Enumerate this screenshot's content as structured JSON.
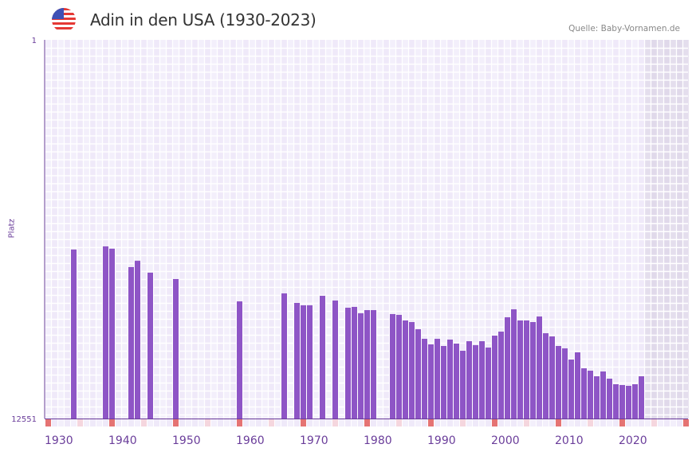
{
  "header": {
    "title": "Adin in den USA (1930-2023)",
    "source": "Quelle: Baby-Vornamen.de",
    "flag_icon": "us-flag-icon"
  },
  "chart_data": {
    "type": "bar",
    "title": "Adin in den USA (1930-2023)",
    "xlabel": "",
    "ylabel": "Platz",
    "y_scale": "log-reversed",
    "ylim": [
      1,
      12551
    ],
    "y_tick_labels": [
      "1",
      "12551"
    ],
    "xlim": [
      1930,
      2030
    ],
    "x_tick_labels": [
      "1930",
      "1940",
      "1950",
      "1960",
      "1970",
      "1980",
      "1990",
      "2000",
      "2010",
      "2020"
    ],
    "data_range": [
      1930,
      2023
    ],
    "points": [
      [
        1934,
        186
      ],
      [
        1939,
        172
      ],
      [
        1940,
        182
      ],
      [
        1943,
        288
      ],
      [
        1944,
        246
      ],
      [
        1946,
        331
      ],
      [
        1950,
        388
      ],
      [
        1960,
        677
      ],
      [
        1967,
        555
      ],
      [
        1969,
        704
      ],
      [
        1970,
        747
      ],
      [
        1971,
        747
      ],
      [
        1973,
        589
      ],
      [
        1975,
        663
      ],
      [
        1977,
        793
      ],
      [
        1978,
        777
      ],
      [
        1979,
        911
      ],
      [
        1980,
        842
      ],
      [
        1981,
        842
      ],
      [
        1984,
        929
      ],
      [
        1985,
        948
      ],
      [
        1986,
        1090
      ],
      [
        1987,
        1134
      ],
      [
        1988,
        1356
      ],
      [
        1989,
        1721
      ],
      [
        1990,
        1978
      ],
      [
        1991,
        1721
      ],
      [
        1992,
        2058
      ],
      [
        1993,
        1755
      ],
      [
        1994,
        1939
      ],
      [
        1995,
        2318
      ],
      [
        1996,
        1827
      ],
      [
        1997,
        2017
      ],
      [
        1998,
        1827
      ],
      [
        1999,
        2141
      ],
      [
        2000,
        1590
      ],
      [
        2001,
        1439
      ],
      [
        2002,
        1006
      ],
      [
        2003,
        825
      ],
      [
        2004,
        1090
      ],
      [
        2005,
        1090
      ],
      [
        2006,
        1134
      ],
      [
        2007,
        987
      ],
      [
        2008,
        1497
      ],
      [
        2009,
        1622
      ],
      [
        2010,
        2058
      ],
      [
        2011,
        2184
      ],
      [
        2012,
        2885
      ],
      [
        2013,
        2413
      ],
      [
        2014,
        3590
      ],
      [
        2015,
        3811
      ],
      [
        2016,
        4380
      ],
      [
        2017,
        3887
      ],
      [
        2018,
        4648
      ],
      [
        2019,
        5341
      ],
      [
        2020,
        5449
      ],
      [
        2021,
        5558
      ],
      [
        2022,
        5341
      ],
      [
        2023,
        4380
      ]
    ],
    "colors": {
      "bar": "#8e55c6",
      "axis": "#6a3d9a",
      "decade_marker": "#e57373",
      "half_decade_marker": "#f5d6de",
      "future_region": "#e2dcec"
    }
  }
}
